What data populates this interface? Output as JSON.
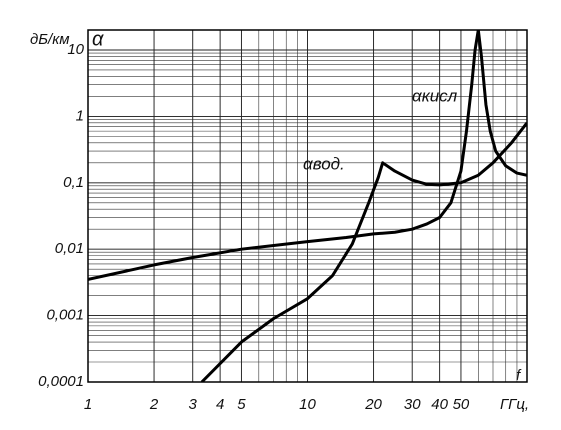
{
  "chart_data": {
    "type": "line",
    "y_label": "дБ/км",
    "y_symbol": "α",
    "x_symbol": "f",
    "x_unit": "ГГц,",
    "xscale": "log",
    "yscale": "log",
    "grid": true,
    "xlim": [
      1,
      100
    ],
    "ylim": [
      0.0001,
      20
    ],
    "xticks": [
      1,
      2,
      3,
      4,
      5,
      10,
      20,
      30,
      40,
      50
    ],
    "yticks": [
      {
        "value": 0.0001,
        "label": "0,0001"
      },
      {
        "value": 0.001,
        "label": "0,001"
      },
      {
        "value": 0.01,
        "label": "0,01"
      },
      {
        "value": 0.1,
        "label": "0,1"
      },
      1,
      10
    ],
    "series": [
      {
        "name": "αвод.",
        "color": "#000000",
        "x": [
          3.3,
          5,
          7,
          10,
          13,
          16,
          19,
          21,
          22,
          25,
          30,
          35,
          40,
          50,
          60,
          70,
          85,
          100
        ],
        "values": [
          0.0001,
          0.0004,
          0.0009,
          0.0018,
          0.004,
          0.012,
          0.05,
          0.12,
          0.2,
          0.15,
          0.11,
          0.095,
          0.093,
          0.1,
          0.13,
          0.2,
          0.4,
          0.8
        ]
      },
      {
        "name": "αкисл",
        "color": "#000000",
        "x": [
          1,
          2,
          3,
          5,
          10,
          15,
          20,
          25,
          30,
          35,
          40,
          45,
          50,
          53,
          56,
          58,
          60,
          62,
          65,
          68,
          72,
          80,
          90,
          100
        ],
        "values": [
          0.0035,
          0.0058,
          0.0075,
          0.01,
          0.013,
          0.015,
          0.017,
          0.018,
          0.02,
          0.024,
          0.03,
          0.05,
          0.15,
          0.6,
          3,
          10,
          20,
          8,
          1.5,
          0.6,
          0.3,
          0.18,
          0.14,
          0.13
        ]
      }
    ]
  }
}
